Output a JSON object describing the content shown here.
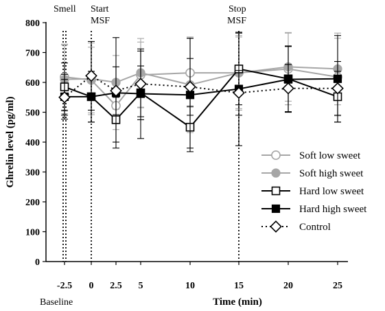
{
  "chart_data": {
    "type": "line",
    "title": "",
    "xlabel": "Time (min)",
    "ylabel": "Ghrelin level (pg/ml)",
    "ylim": [
      0,
      800
    ],
    "yticks": [
      0,
      100,
      200,
      300,
      400,
      500,
      600,
      700,
      800
    ],
    "x": [
      -2.5,
      0,
      2.5,
      5,
      10,
      15,
      20,
      25
    ],
    "x_tick_labels": [
      "-2.5",
      "0",
      "2.5",
      "5",
      "10",
      "15",
      "20",
      "25"
    ],
    "grid": false,
    "legend_position": "right",
    "annotations": {
      "smell": "Smell",
      "start_line1": "Start",
      "start_line2": "MSF",
      "stop_line1": "Stop",
      "stop_line2": "MSF",
      "baseline": "Baseline"
    },
    "event_lines_x": [
      -2.5,
      0,
      15
    ],
    "series": [
      {
        "name": "Soft low sweet",
        "color": "#a6a6a6",
        "marker": "circle-open",
        "line": "solid",
        "values": [
          618,
          608,
          522,
          625,
          632,
          632,
          645,
          618
        ],
        "errors": [
          110,
          110,
          80,
          110,
          115,
          120,
          120,
          130
        ]
      },
      {
        "name": "Soft high sweet",
        "color": "#a6a6a6",
        "marker": "circle-filled",
        "line": "solid",
        "values": [
          610,
          612,
          600,
          632,
          592,
          632,
          652,
          645
        ],
        "errors": [
          115,
          120,
          90,
          115,
          160,
          125,
          115,
          120
        ]
      },
      {
        "name": "Hard low sweet",
        "color": "#000000",
        "marker": "square-open",
        "line": "solid",
        "values": [
          585,
          552,
          475,
          565,
          450,
          645,
          612,
          552
        ],
        "errors": [
          80,
          85,
          75,
          90,
          70,
          120,
          110,
          85
        ]
      },
      {
        "name": "Hard high sweet",
        "color": "#000000",
        "marker": "square-filled",
        "line": "solid",
        "values": [
          552,
          552,
          565,
          562,
          558,
          578,
          610,
          612
        ],
        "errors": [
          75,
          85,
          185,
          150,
          190,
          190,
          110,
          145
        ]
      },
      {
        "name": "Control",
        "color": "#000000",
        "marker": "diamond-open",
        "line": "dotted",
        "values": [
          550,
          622,
          572,
          595,
          585,
          565,
          580,
          580
        ],
        "errors": [
          60,
          115,
          80,
          110,
          95,
          75,
          80,
          90
        ]
      }
    ]
  }
}
